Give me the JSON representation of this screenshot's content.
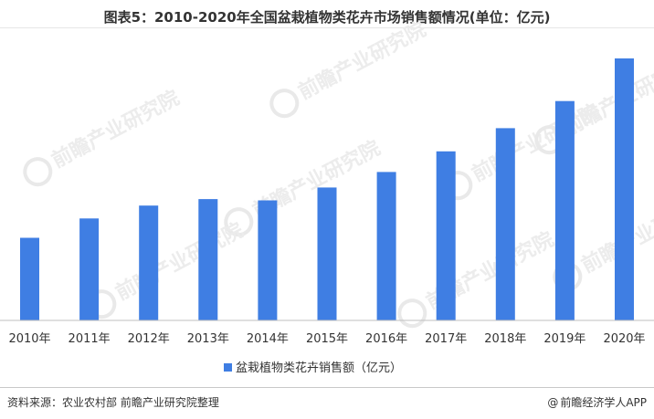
{
  "title": "图表5：2010-2020年全国盆栽植物类花卉市场销售额情况(单位：亿元)",
  "footer": {
    "source": "资料来源：农业农村部 前瞻产业研究院整理",
    "brand_icon": "@",
    "brand": "前瞻经济学人APP"
  },
  "watermark": {
    "text": "前瞻产业研究院"
  },
  "colors": {
    "bar": "#3f7ee3",
    "axis": "#bfbfbf",
    "text": "#333333"
  },
  "chart_data": {
    "type": "bar",
    "title": "图表5：2010-2020年全国盆栽植物类花卉市场销售额情况(单位：亿元)",
    "categories": [
      "2010年",
      "2011年",
      "2012年",
      "2013年",
      "2014年",
      "2015年",
      "2016年",
      "2017年",
      "2018年",
      "2019年",
      "2020年"
    ],
    "series": [
      {
        "name": "盆栽植物类花卉销售额（亿元）",
        "values": [
          320,
          395,
          445,
          470,
          465,
          515,
          575,
          655,
          745,
          850,
          1015
        ]
      }
    ],
    "ylim": [
      0,
      1100
    ],
    "xlabel": "",
    "ylabel": "",
    "grid": false,
    "legend": "bottom-center"
  }
}
